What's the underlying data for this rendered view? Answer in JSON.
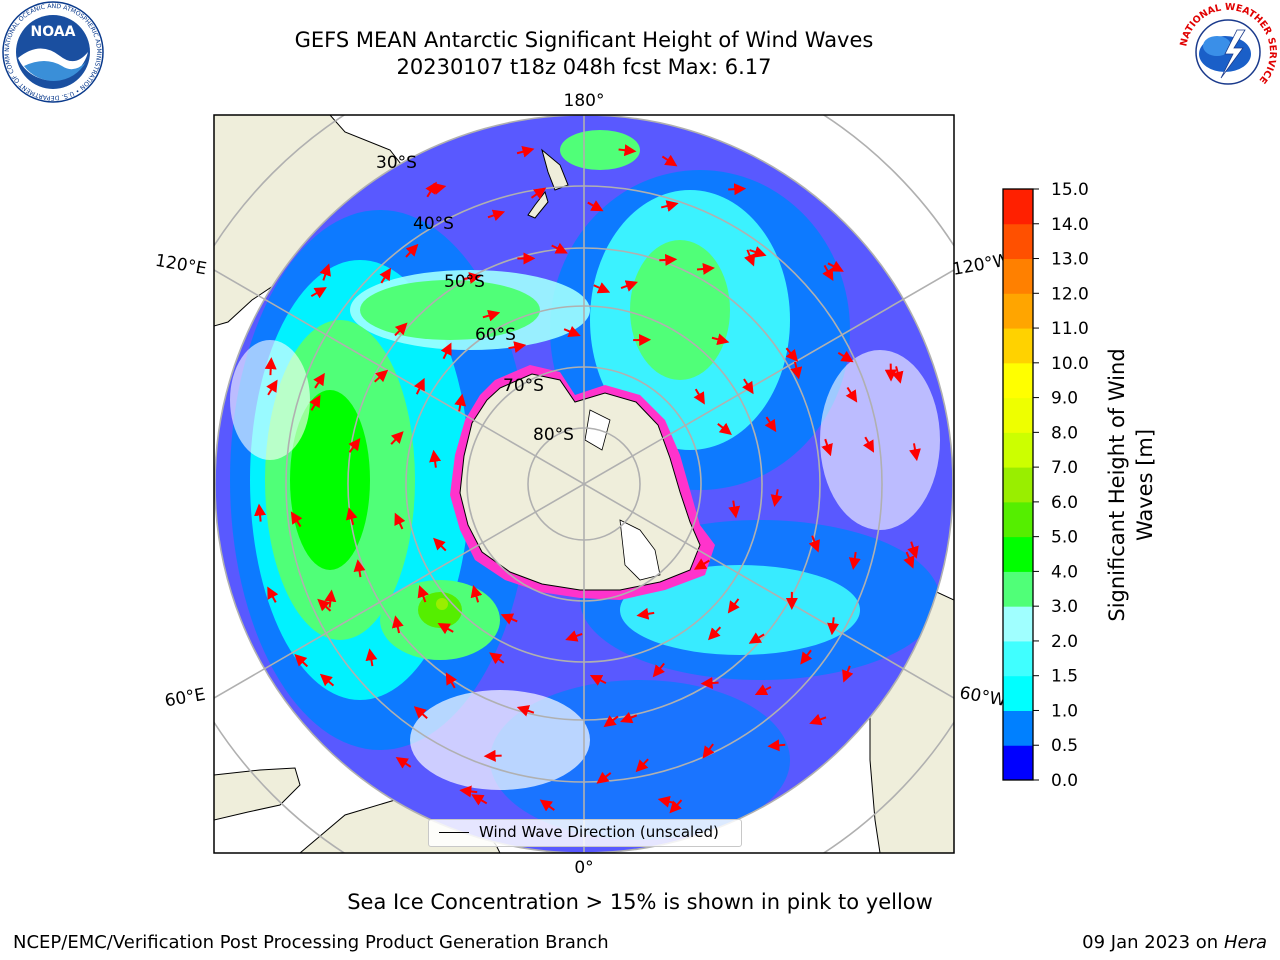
{
  "header": {
    "title_line1": "GEFS MEAN Antarctic Significant Height of Wind Waves",
    "title_line2": "20230107 t18z 048h fcst   Max: 6.17"
  },
  "logos": {
    "left": {
      "name": "NOAA",
      "label": "NOAA",
      "ring_text": "NATIONAL OCEANIC AND ATMOSPHERIC ADMINISTRATION • U.S. DEPARTMENT OF COMMERCE"
    },
    "right": {
      "name": "National Weather Service",
      "ring_text": "NATIONAL WEATHER SERVICE"
    }
  },
  "map": {
    "projection": "south-polar-stereographic",
    "meridian_labels": {
      "top": "180°",
      "bottom": "0°",
      "upper_left": "120°E",
      "lower_left": "60°E",
      "upper_right": "120°W",
      "lower_right": "60°W"
    },
    "latitude_labels": [
      "30°S",
      "40°S",
      "50°S",
      "60°S",
      "70°S",
      "80°S"
    ],
    "colors": {
      "land": "#efeedb",
      "ocean_low": "#0000ff",
      "grid": "#b0b0b0",
      "arrow": "#ff0000",
      "ice": "#ff33cc"
    },
    "legend": {
      "entry": "Wind Wave Direction (unscaled)"
    }
  },
  "colorbar": {
    "label": "Significant Height of Wind Waves [m]",
    "label_line1": "Significant Height of Wind",
    "label_line2": "Waves [m]",
    "ticks": [
      "0.0",
      "0.5",
      "1.0",
      "1.5",
      "2.0",
      "3.0",
      "4.0",
      "5.0",
      "6.0",
      "7.0",
      "8.0",
      "9.0",
      "10.0",
      "11.0",
      "12.0",
      "13.0",
      "14.0",
      "15.0"
    ],
    "colors": [
      "#0000ff",
      "#0080ff",
      "#00ffff",
      "#40ffff",
      "#a0ffff",
      "#50ff78",
      "#00ff00",
      "#55ee00",
      "#99ee00",
      "#ccff00",
      "#eeff00",
      "#ffff00",
      "#ffd200",
      "#ffa500",
      "#ff8000",
      "#ff5000",
      "#ff2000"
    ]
  },
  "footer": {
    "caption": "Sea Ice Concentration > 15% is shown in pink to yellow",
    "left": "NCEP/EMC/Verification Post Processing Product Generation Branch",
    "right_date": "09 Jan 2023 on",
    "right_host": "Hera"
  }
}
